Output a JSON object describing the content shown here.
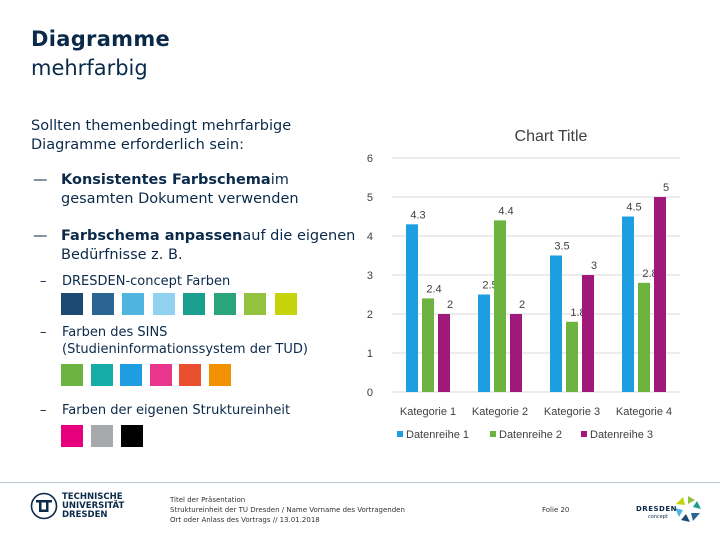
{
  "slide": {
    "title_line1": "Diagramme",
    "title_line2": "mehrfarbig",
    "intro": "Sollten themenbedingt mehrfarbige Diagramme erforderlich sein:",
    "bullets": [
      {
        "bold": "Konsistentes Farbschema",
        "rest": "im gesamten Dokument verwenden"
      },
      {
        "bold": "Farbschema anpassen",
        "rest": "auf die eigenen Bedürfnisse z. B."
      }
    ],
    "sub_bullets": [
      "DRESDEN-concept Farben",
      "Farben des SINS (Studieninformationssystem der TUD)",
      "Farben der eigenen Struktureinheit"
    ],
    "dash": "–"
  },
  "palettes": {
    "dresden_concept": [
      "#1d4a73",
      "#2b6693",
      "#4fb5e0",
      "#90d2f0",
      "#1a9e8f",
      "#2aa57a",
      "#93c23e",
      "#c5d40a"
    ],
    "sins": [
      "#6cb33f",
      "#17aca5",
      "#1e9ee0",
      "#e8368f",
      "#e8502e",
      "#f39200"
    ],
    "struktureinheit": [
      "#e6007e",
      "#a7a9ac",
      "#000000"
    ]
  },
  "chart_data": {
    "type": "bar",
    "title": "Chart Title",
    "categories": [
      "Kategorie 1",
      "Kategorie 2",
      "Kategorie 3",
      "Kategorie 4"
    ],
    "series": [
      {
        "name": "Datenreihe 1",
        "values": [
          4.3,
          2.5,
          3.5,
          4.5
        ],
        "color": "#1e9ee0"
      },
      {
        "name": "Datenreihe 2",
        "values": [
          2.4,
          4.4,
          1.8,
          2.8
        ],
        "color": "#6cb33f"
      },
      {
        "name": "Datenreihe 3",
        "values": [
          2,
          2,
          3,
          5
        ],
        "color": "#a0187a"
      }
    ],
    "ylim": [
      0,
      6
    ],
    "yticks": [
      "0",
      "1",
      "2",
      "3",
      "4",
      "5",
      "6"
    ],
    "grid": true,
    "legend_position": "bottom"
  },
  "footer": {
    "line1": "Titel der Präsentation",
    "line2": "Struktureinheit der TU Dresden / Name Vorname des Vortragenden",
    "line3": "Ort oder Anlass des Vortrags // 13.01.2018",
    "page": "Folie 20",
    "tu_logo_lines": [
      "TECHNISCHE",
      "UNIVERSITÄT",
      "DRESDEN"
    ],
    "dresden_logo": "DRESDEN",
    "dresden_logo_sub": "concept"
  }
}
